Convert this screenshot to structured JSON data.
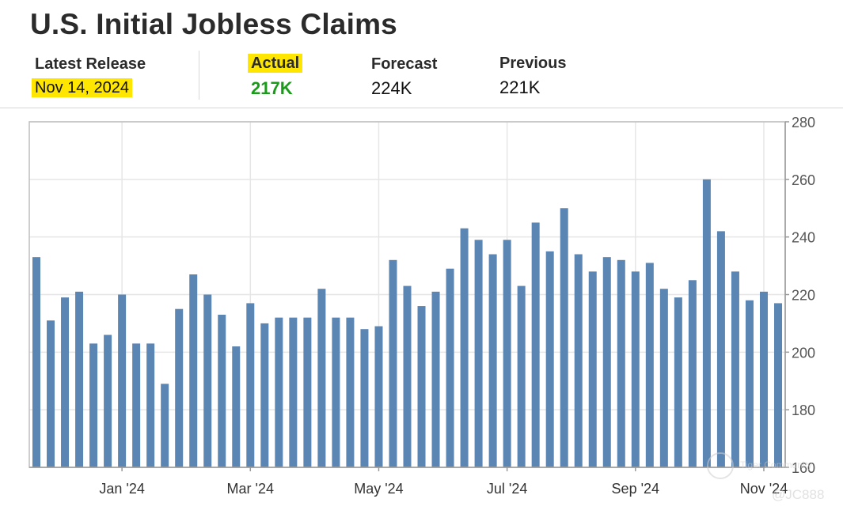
{
  "header": {
    "title": "U.S. Initial Jobless Claims",
    "latest_release_label": "Latest Release",
    "latest_release_value": "Nov 14, 2024",
    "actual_label": "Actual",
    "actual_value": "217K",
    "forecast_label": "Forecast",
    "forecast_value": "224K",
    "previous_label": "Previous",
    "previous_value": "221K"
  },
  "colors": {
    "bar": "#5b85b2",
    "actual_value": "#1a9b1a",
    "highlight": "#ffe600",
    "grid": "#e6e6e6"
  },
  "watermark": {
    "brand": "Tiger Community",
    "user": "@JC888"
  },
  "chart_data": {
    "type": "bar",
    "title": "",
    "xlabel": "",
    "ylabel": "",
    "ylim": [
      160,
      280
    ],
    "yticks": [
      160,
      180,
      200,
      220,
      240,
      260,
      280
    ],
    "y_axis_side": "right",
    "grid": true,
    "x_tick_labels": [
      "Jan '24",
      "Mar '24",
      "May '24",
      "Jul '24",
      "Sep '24",
      "Nov '24"
    ],
    "x_tick_positions": [
      6,
      15,
      24,
      33,
      42,
      51
    ],
    "values": [
      233,
      211,
      219,
      221,
      203,
      206,
      220,
      203,
      203,
      189,
      215,
      227,
      220,
      213,
      202,
      217,
      210,
      212,
      212,
      212,
      222,
      212,
      212,
      208,
      209,
      232,
      223,
      216,
      221,
      229,
      243,
      239,
      234,
      239,
      223,
      245,
      235,
      250,
      234,
      228,
      233,
      232,
      228,
      231,
      222,
      219,
      225,
      260,
      242,
      228,
      218,
      221,
      217
    ]
  }
}
